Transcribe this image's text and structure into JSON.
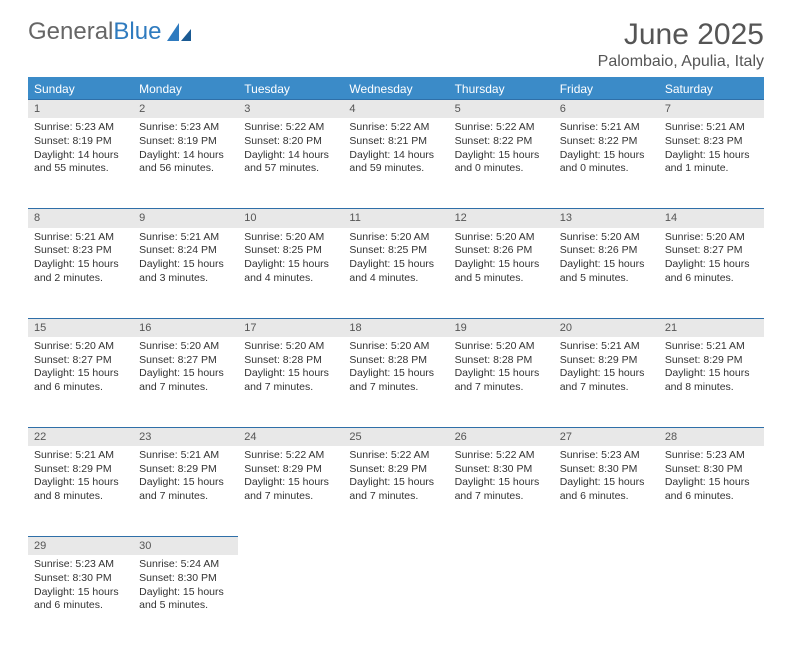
{
  "brand": {
    "part1": "General",
    "part2": "Blue"
  },
  "title": "June 2025",
  "location": "Palombaio, Apulia, Italy",
  "colors": {
    "header_bg": "#3b8bc8",
    "daynum_bg": "#e8e8e8",
    "divider": "#2f6fa8",
    "text": "#333333",
    "title_text": "#555555"
  },
  "weekdays": [
    "Sunday",
    "Monday",
    "Tuesday",
    "Wednesday",
    "Thursday",
    "Friday",
    "Saturday"
  ],
  "weeks": [
    [
      {
        "n": "1",
        "sunrise": "Sunrise: 5:23 AM",
        "sunset": "Sunset: 8:19 PM",
        "daylight1": "Daylight: 14 hours",
        "daylight2": "and 55 minutes."
      },
      {
        "n": "2",
        "sunrise": "Sunrise: 5:23 AM",
        "sunset": "Sunset: 8:19 PM",
        "daylight1": "Daylight: 14 hours",
        "daylight2": "and 56 minutes."
      },
      {
        "n": "3",
        "sunrise": "Sunrise: 5:22 AM",
        "sunset": "Sunset: 8:20 PM",
        "daylight1": "Daylight: 14 hours",
        "daylight2": "and 57 minutes."
      },
      {
        "n": "4",
        "sunrise": "Sunrise: 5:22 AM",
        "sunset": "Sunset: 8:21 PM",
        "daylight1": "Daylight: 14 hours",
        "daylight2": "and 59 minutes."
      },
      {
        "n": "5",
        "sunrise": "Sunrise: 5:22 AM",
        "sunset": "Sunset: 8:22 PM",
        "daylight1": "Daylight: 15 hours",
        "daylight2": "and 0 minutes."
      },
      {
        "n": "6",
        "sunrise": "Sunrise: 5:21 AM",
        "sunset": "Sunset: 8:22 PM",
        "daylight1": "Daylight: 15 hours",
        "daylight2": "and 0 minutes."
      },
      {
        "n": "7",
        "sunrise": "Sunrise: 5:21 AM",
        "sunset": "Sunset: 8:23 PM",
        "daylight1": "Daylight: 15 hours",
        "daylight2": "and 1 minute."
      }
    ],
    [
      {
        "n": "8",
        "sunrise": "Sunrise: 5:21 AM",
        "sunset": "Sunset: 8:23 PM",
        "daylight1": "Daylight: 15 hours",
        "daylight2": "and 2 minutes."
      },
      {
        "n": "9",
        "sunrise": "Sunrise: 5:21 AM",
        "sunset": "Sunset: 8:24 PM",
        "daylight1": "Daylight: 15 hours",
        "daylight2": "and 3 minutes."
      },
      {
        "n": "10",
        "sunrise": "Sunrise: 5:20 AM",
        "sunset": "Sunset: 8:25 PM",
        "daylight1": "Daylight: 15 hours",
        "daylight2": "and 4 minutes."
      },
      {
        "n": "11",
        "sunrise": "Sunrise: 5:20 AM",
        "sunset": "Sunset: 8:25 PM",
        "daylight1": "Daylight: 15 hours",
        "daylight2": "and 4 minutes."
      },
      {
        "n": "12",
        "sunrise": "Sunrise: 5:20 AM",
        "sunset": "Sunset: 8:26 PM",
        "daylight1": "Daylight: 15 hours",
        "daylight2": "and 5 minutes."
      },
      {
        "n": "13",
        "sunrise": "Sunrise: 5:20 AM",
        "sunset": "Sunset: 8:26 PM",
        "daylight1": "Daylight: 15 hours",
        "daylight2": "and 5 minutes."
      },
      {
        "n": "14",
        "sunrise": "Sunrise: 5:20 AM",
        "sunset": "Sunset: 8:27 PM",
        "daylight1": "Daylight: 15 hours",
        "daylight2": "and 6 minutes."
      }
    ],
    [
      {
        "n": "15",
        "sunrise": "Sunrise: 5:20 AM",
        "sunset": "Sunset: 8:27 PM",
        "daylight1": "Daylight: 15 hours",
        "daylight2": "and 6 minutes."
      },
      {
        "n": "16",
        "sunrise": "Sunrise: 5:20 AM",
        "sunset": "Sunset: 8:27 PM",
        "daylight1": "Daylight: 15 hours",
        "daylight2": "and 7 minutes."
      },
      {
        "n": "17",
        "sunrise": "Sunrise: 5:20 AM",
        "sunset": "Sunset: 8:28 PM",
        "daylight1": "Daylight: 15 hours",
        "daylight2": "and 7 minutes."
      },
      {
        "n": "18",
        "sunrise": "Sunrise: 5:20 AM",
        "sunset": "Sunset: 8:28 PM",
        "daylight1": "Daylight: 15 hours",
        "daylight2": "and 7 minutes."
      },
      {
        "n": "19",
        "sunrise": "Sunrise: 5:20 AM",
        "sunset": "Sunset: 8:28 PM",
        "daylight1": "Daylight: 15 hours",
        "daylight2": "and 7 minutes."
      },
      {
        "n": "20",
        "sunrise": "Sunrise: 5:21 AM",
        "sunset": "Sunset: 8:29 PM",
        "daylight1": "Daylight: 15 hours",
        "daylight2": "and 7 minutes."
      },
      {
        "n": "21",
        "sunrise": "Sunrise: 5:21 AM",
        "sunset": "Sunset: 8:29 PM",
        "daylight1": "Daylight: 15 hours",
        "daylight2": "and 8 minutes."
      }
    ],
    [
      {
        "n": "22",
        "sunrise": "Sunrise: 5:21 AM",
        "sunset": "Sunset: 8:29 PM",
        "daylight1": "Daylight: 15 hours",
        "daylight2": "and 8 minutes."
      },
      {
        "n": "23",
        "sunrise": "Sunrise: 5:21 AM",
        "sunset": "Sunset: 8:29 PM",
        "daylight1": "Daylight: 15 hours",
        "daylight2": "and 7 minutes."
      },
      {
        "n": "24",
        "sunrise": "Sunrise: 5:22 AM",
        "sunset": "Sunset: 8:29 PM",
        "daylight1": "Daylight: 15 hours",
        "daylight2": "and 7 minutes."
      },
      {
        "n": "25",
        "sunrise": "Sunrise: 5:22 AM",
        "sunset": "Sunset: 8:29 PM",
        "daylight1": "Daylight: 15 hours",
        "daylight2": "and 7 minutes."
      },
      {
        "n": "26",
        "sunrise": "Sunrise: 5:22 AM",
        "sunset": "Sunset: 8:30 PM",
        "daylight1": "Daylight: 15 hours",
        "daylight2": "and 7 minutes."
      },
      {
        "n": "27",
        "sunrise": "Sunrise: 5:23 AM",
        "sunset": "Sunset: 8:30 PM",
        "daylight1": "Daylight: 15 hours",
        "daylight2": "and 6 minutes."
      },
      {
        "n": "28",
        "sunrise": "Sunrise: 5:23 AM",
        "sunset": "Sunset: 8:30 PM",
        "daylight1": "Daylight: 15 hours",
        "daylight2": "and 6 minutes."
      }
    ],
    [
      {
        "n": "29",
        "sunrise": "Sunrise: 5:23 AM",
        "sunset": "Sunset: 8:30 PM",
        "daylight1": "Daylight: 15 hours",
        "daylight2": "and 6 minutes."
      },
      {
        "n": "30",
        "sunrise": "Sunrise: 5:24 AM",
        "sunset": "Sunset: 8:30 PM",
        "daylight1": "Daylight: 15 hours",
        "daylight2": "and 5 minutes."
      },
      null,
      null,
      null,
      null,
      null
    ]
  ]
}
